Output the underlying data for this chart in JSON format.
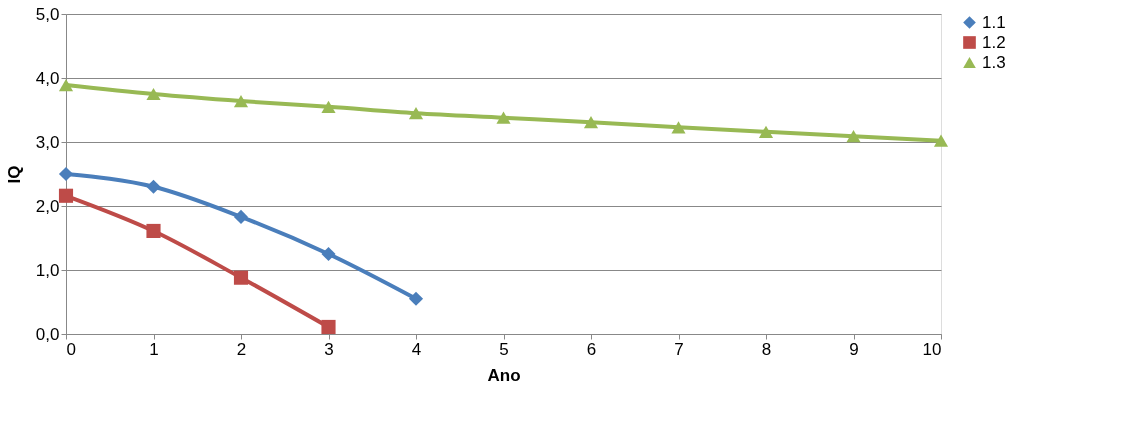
{
  "chart_data": {
    "type": "line",
    "xlabel": "Ano",
    "ylabel": "IQ",
    "x": [
      0,
      1,
      2,
      3,
      4,
      5,
      6,
      7,
      8,
      9,
      10
    ],
    "xlim": [
      0,
      10
    ],
    "xticks": [
      0,
      1,
      2,
      3,
      4,
      5,
      6,
      7,
      8,
      9,
      10
    ],
    "ylim": [
      0,
      5
    ],
    "yticks": [
      {
        "value": 0,
        "label": "0,0"
      },
      {
        "value": 1,
        "label": "1,0"
      },
      {
        "value": 2,
        "label": "2,0"
      },
      {
        "value": 3,
        "label": "3,0"
      },
      {
        "value": 4,
        "label": "4,0"
      },
      {
        "value": 5,
        "label": "5,0"
      }
    ],
    "grid": "y",
    "legend": "right",
    "line_style": "solid",
    "series": [
      {
        "name": "1.1",
        "color": "#4a7ebb",
        "marker": "diamond",
        "values": [
          2.5,
          2.3,
          1.83,
          1.25,
          0.55,
          null,
          null,
          null,
          null,
          null,
          null
        ]
      },
      {
        "name": "1.2",
        "color": "#be4b48",
        "marker": "square",
        "values": [
          2.16,
          1.61,
          0.88,
          0.11,
          null,
          null,
          null,
          null,
          null,
          null,
          null
        ]
      },
      {
        "name": "1.3",
        "color": "#98b954",
        "marker": "triangle",
        "values": [
          3.89,
          3.75,
          3.64,
          3.55,
          3.45,
          3.38,
          3.31,
          3.23,
          3.16,
          3.09,
          3.02
        ]
      }
    ]
  }
}
